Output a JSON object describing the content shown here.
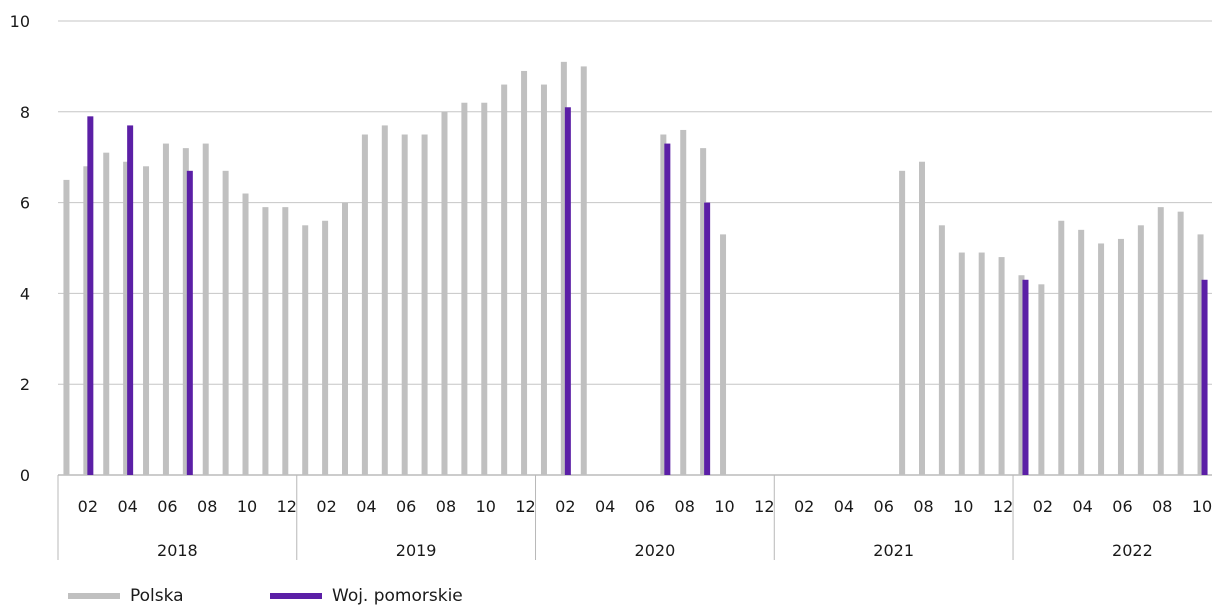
{
  "chart_data": {
    "type": "bar",
    "ylim": [
      0,
      10
    ],
    "yticks": [
      "0",
      "2",
      "4",
      "6",
      "8",
      "10"
    ],
    "grid": true,
    "legend_position": "bottom-left",
    "month_ticks": [
      "02",
      "04",
      "06",
      "08",
      "10",
      "12"
    ],
    "years": [
      "2018",
      "2019",
      "2020",
      "2021",
      "2022"
    ],
    "series": [
      {
        "name": "Polska",
        "color": "#c0c0c0",
        "values": [
          6.5,
          6.8,
          7.1,
          6.9,
          6.8,
          7.3,
          7.2,
          7.3,
          6.7,
          6.2,
          5.9,
          5.9,
          5.5,
          5.6,
          6.0,
          7.5,
          7.7,
          7.5,
          7.5,
          8.0,
          8.2,
          8.2,
          8.6,
          8.9,
          8.6,
          9.1,
          9.0,
          null,
          null,
          null,
          7.5,
          7.6,
          7.2,
          5.3,
          null,
          null,
          null,
          null,
          null,
          null,
          null,
          null,
          6.7,
          6.9,
          5.5,
          4.9,
          4.9,
          4.8,
          4.4,
          4.2,
          5.6,
          5.4,
          5.1,
          5.2,
          5.5,
          5.9,
          5.8,
          5.3
        ]
      },
      {
        "name": "Woj. pomorskie",
        "color": "#5b1fa6",
        "values": [
          null,
          7.9,
          null,
          7.7,
          null,
          null,
          6.7,
          null,
          null,
          null,
          null,
          null,
          null,
          null,
          null,
          null,
          null,
          null,
          null,
          null,
          null,
          null,
          null,
          null,
          null,
          8.1,
          null,
          null,
          null,
          null,
          7.3,
          null,
          6.0,
          null,
          null,
          null,
          null,
          null,
          null,
          null,
          null,
          null,
          null,
          null,
          null,
          null,
          null,
          null,
          4.3,
          null,
          null,
          null,
          null,
          null,
          null,
          null,
          null,
          4.3
        ]
      }
    ]
  }
}
